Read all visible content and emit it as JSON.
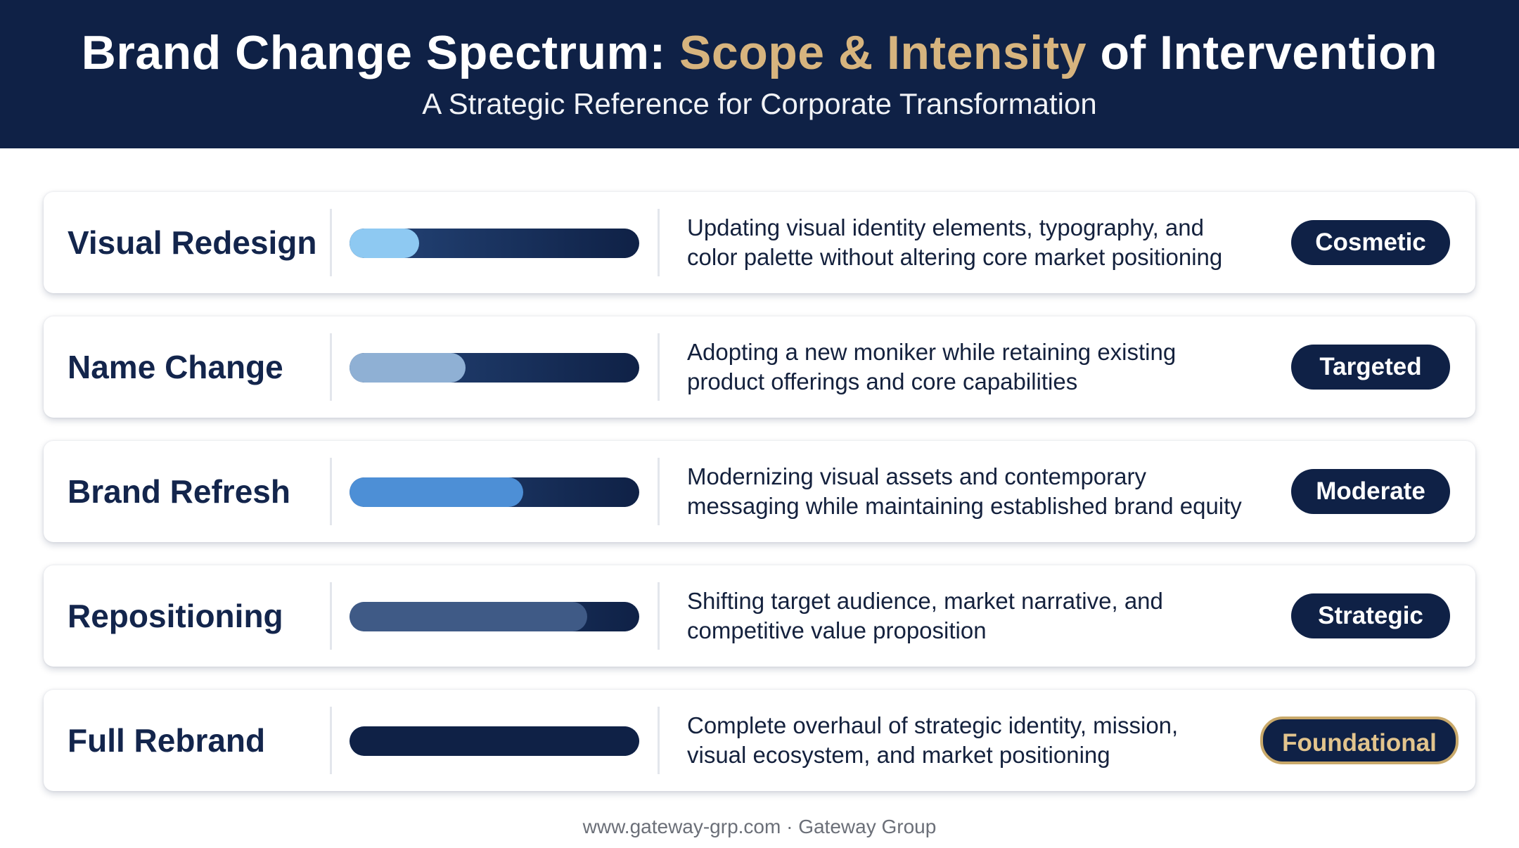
{
  "header": {
    "title_prefix": "Brand Change Spectrum: ",
    "title_accent": "Scope & Intensity",
    "title_suffix": " of Intervention",
    "subtitle": "A Strategic Reference for Corporate Transformation"
  },
  "colors": {
    "navy": "#0f2146",
    "gold_accent": "#d7b47e",
    "bar_fill_levels": [
      "#8ec9f2",
      "#8fb0d4",
      "#4d8fd6",
      "#3f5a86",
      "#0f2146"
    ]
  },
  "rows": [
    {
      "name": "Visual Redesign",
      "intensity": 0.24,
      "fill_color": "#8ec9f2",
      "description_line1": "Updating visual identity elements, typography, and",
      "description_line2": "color palette without altering core market positioning",
      "badge": "Cosmetic"
    },
    {
      "name": "Name Change",
      "intensity": 0.4,
      "fill_color": "#8fb0d4",
      "description_line1": "Adopting a new moniker while retaining existing",
      "description_line2": "product offerings and core capabilities",
      "badge": "Targeted"
    },
    {
      "name": "Brand Refresh",
      "intensity": 0.6,
      "fill_color": "#4d8fd6",
      "description_line1": "Modernizing visual assets and contemporary",
      "description_line2": "messaging while maintaining established brand equity",
      "badge": "Moderate"
    },
    {
      "name": "Repositioning",
      "intensity": 0.82,
      "fill_color": "#3f5a86",
      "description_line1": "Shifting target audience, market narrative, and",
      "description_line2": "competitive value proposition",
      "badge": "Strategic"
    },
    {
      "name": "Full Rebrand",
      "intensity": 1.0,
      "fill_color": "#0f2146",
      "description_line1": "Complete overhaul of strategic identity, mission,",
      "description_line2": "visual ecosystem, and market positioning",
      "badge": "Foundational"
    }
  ],
  "footer": {
    "text": "www.gateway-grp.com · Gateway Group"
  }
}
